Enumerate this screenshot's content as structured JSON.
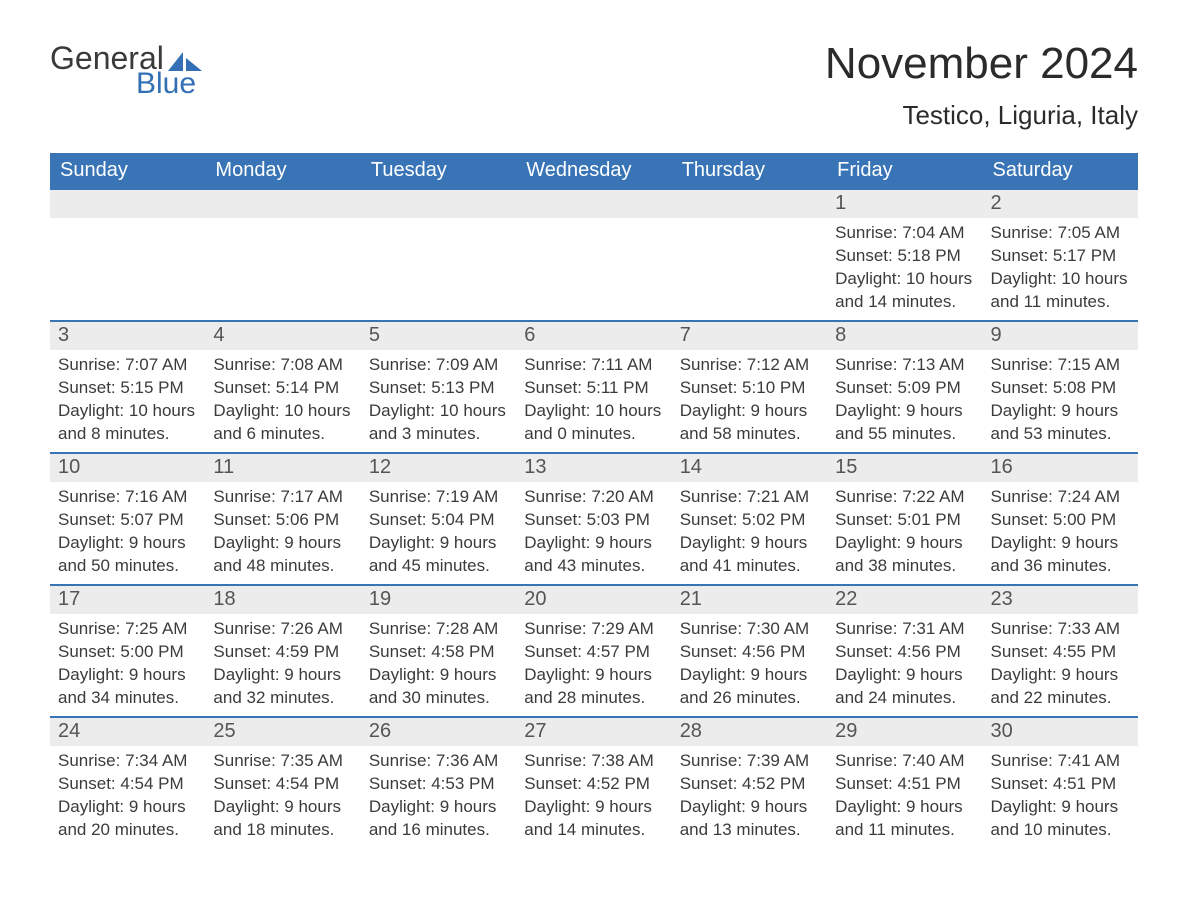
{
  "brand": {
    "word1": "General",
    "word2": "Blue",
    "accent": "#326fb4",
    "text_color": "#3a3a3a"
  },
  "header": {
    "title": "November 2024",
    "location": "Testico, Liguria, Italy"
  },
  "calendar": {
    "header_bg": "#3874b6",
    "header_fg": "#ffffff",
    "daynum_bg": "#ececec",
    "border_color": "#3874b6",
    "days_of_week": [
      "Sunday",
      "Monday",
      "Tuesday",
      "Wednesday",
      "Thursday",
      "Friday",
      "Saturday"
    ],
    "first_weekday_index": 5,
    "num_days": 30,
    "entries": {
      "1": {
        "sunrise": "7:04 AM",
        "sunset": "5:18 PM",
        "dl_h": 10,
        "dl_m": 14
      },
      "2": {
        "sunrise": "7:05 AM",
        "sunset": "5:17 PM",
        "dl_h": 10,
        "dl_m": 11
      },
      "3": {
        "sunrise": "7:07 AM",
        "sunset": "5:15 PM",
        "dl_h": 10,
        "dl_m": 8
      },
      "4": {
        "sunrise": "7:08 AM",
        "sunset": "5:14 PM",
        "dl_h": 10,
        "dl_m": 6
      },
      "5": {
        "sunrise": "7:09 AM",
        "sunset": "5:13 PM",
        "dl_h": 10,
        "dl_m": 3
      },
      "6": {
        "sunrise": "7:11 AM",
        "sunset": "5:11 PM",
        "dl_h": 10,
        "dl_m": 0
      },
      "7": {
        "sunrise": "7:12 AM",
        "sunset": "5:10 PM",
        "dl_h": 9,
        "dl_m": 58
      },
      "8": {
        "sunrise": "7:13 AM",
        "sunset": "5:09 PM",
        "dl_h": 9,
        "dl_m": 55
      },
      "9": {
        "sunrise": "7:15 AM",
        "sunset": "5:08 PM",
        "dl_h": 9,
        "dl_m": 53
      },
      "10": {
        "sunrise": "7:16 AM",
        "sunset": "5:07 PM",
        "dl_h": 9,
        "dl_m": 50
      },
      "11": {
        "sunrise": "7:17 AM",
        "sunset": "5:06 PM",
        "dl_h": 9,
        "dl_m": 48
      },
      "12": {
        "sunrise": "7:19 AM",
        "sunset": "5:04 PM",
        "dl_h": 9,
        "dl_m": 45
      },
      "13": {
        "sunrise": "7:20 AM",
        "sunset": "5:03 PM",
        "dl_h": 9,
        "dl_m": 43
      },
      "14": {
        "sunrise": "7:21 AM",
        "sunset": "5:02 PM",
        "dl_h": 9,
        "dl_m": 41
      },
      "15": {
        "sunrise": "7:22 AM",
        "sunset": "5:01 PM",
        "dl_h": 9,
        "dl_m": 38
      },
      "16": {
        "sunrise": "7:24 AM",
        "sunset": "5:00 PM",
        "dl_h": 9,
        "dl_m": 36
      },
      "17": {
        "sunrise": "7:25 AM",
        "sunset": "5:00 PM",
        "dl_h": 9,
        "dl_m": 34
      },
      "18": {
        "sunrise": "7:26 AM",
        "sunset": "4:59 PM",
        "dl_h": 9,
        "dl_m": 32
      },
      "19": {
        "sunrise": "7:28 AM",
        "sunset": "4:58 PM",
        "dl_h": 9,
        "dl_m": 30
      },
      "20": {
        "sunrise": "7:29 AM",
        "sunset": "4:57 PM",
        "dl_h": 9,
        "dl_m": 28
      },
      "21": {
        "sunrise": "7:30 AM",
        "sunset": "4:56 PM",
        "dl_h": 9,
        "dl_m": 26
      },
      "22": {
        "sunrise": "7:31 AM",
        "sunset": "4:56 PM",
        "dl_h": 9,
        "dl_m": 24
      },
      "23": {
        "sunrise": "7:33 AM",
        "sunset": "4:55 PM",
        "dl_h": 9,
        "dl_m": 22
      },
      "24": {
        "sunrise": "7:34 AM",
        "sunset": "4:54 PM",
        "dl_h": 9,
        "dl_m": 20
      },
      "25": {
        "sunrise": "7:35 AM",
        "sunset": "4:54 PM",
        "dl_h": 9,
        "dl_m": 18
      },
      "26": {
        "sunrise": "7:36 AM",
        "sunset": "4:53 PM",
        "dl_h": 9,
        "dl_m": 16
      },
      "27": {
        "sunrise": "7:38 AM",
        "sunset": "4:52 PM",
        "dl_h": 9,
        "dl_m": 14
      },
      "28": {
        "sunrise": "7:39 AM",
        "sunset": "4:52 PM",
        "dl_h": 9,
        "dl_m": 13
      },
      "29": {
        "sunrise": "7:40 AM",
        "sunset": "4:51 PM",
        "dl_h": 9,
        "dl_m": 11
      },
      "30": {
        "sunrise": "7:41 AM",
        "sunset": "4:51 PM",
        "dl_h": 9,
        "dl_m": 10
      }
    },
    "labels": {
      "sunrise_prefix": "Sunrise: ",
      "sunset_prefix": "Sunset: ",
      "daylight_prefix": "Daylight: ",
      "hours_word": " hours",
      "and_word": "and ",
      "minutes_word": " minutes."
    }
  }
}
